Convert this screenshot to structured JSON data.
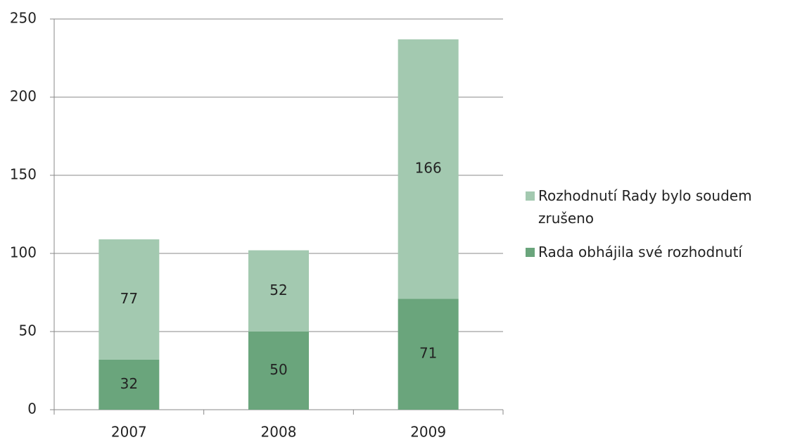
{
  "chart_data": {
    "type": "stacked_bar",
    "categories": [
      "2007",
      "2008",
      "2009"
    ],
    "series": [
      {
        "name": "Rada obhájila své rozhodnutí",
        "color": "#6aa57c",
        "values": [
          32,
          50,
          71
        ]
      },
      {
        "name": "Rozhodnutí Rady bylo soudem zrušeno",
        "color": "#a3c9b0",
        "values": [
          77,
          52,
          166
        ]
      }
    ],
    "ylim": [
      0,
      250
    ],
    "yticks": [
      0,
      50,
      100,
      150,
      200,
      250
    ],
    "grid": true,
    "legend": "right"
  }
}
